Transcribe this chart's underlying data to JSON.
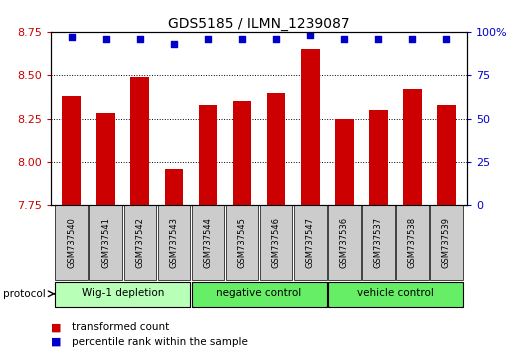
{
  "title": "GDS5185 / ILMN_1239087",
  "samples": [
    "GSM737540",
    "GSM737541",
    "GSM737542",
    "GSM737543",
    "GSM737544",
    "GSM737545",
    "GSM737546",
    "GSM737547",
    "GSM737536",
    "GSM737537",
    "GSM737538",
    "GSM737539"
  ],
  "bar_values": [
    8.38,
    8.28,
    8.49,
    7.96,
    8.33,
    8.35,
    8.4,
    8.65,
    8.25,
    8.3,
    8.42,
    8.33
  ],
  "percentile_values": [
    97,
    96,
    96,
    93,
    96,
    96,
    96,
    98,
    96,
    96,
    96,
    96
  ],
  "bar_color": "#cc0000",
  "percentile_color": "#0000cc",
  "ylim_left": [
    7.75,
    8.75
  ],
  "ylim_right": [
    0,
    100
  ],
  "yticks_left": [
    7.75,
    8.0,
    8.25,
    8.5,
    8.75
  ],
  "yticks_right": [
    0,
    25,
    50,
    75,
    100
  ],
  "groups": [
    {
      "label": "Wig-1 depletion",
      "start": 0,
      "end": 4
    },
    {
      "label": "negative control",
      "start": 4,
      "end": 8
    },
    {
      "label": "vehicle control",
      "start": 8,
      "end": 12
    }
  ],
  "group_colors": [
    "#b8ffb8",
    "#66ee66",
    "#66ee66"
  ],
  "legend_items": [
    {
      "label": "transformed count",
      "color": "#cc0000"
    },
    {
      "label": "percentile rank within the sample",
      "color": "#0000cc"
    }
  ],
  "bar_width": 0.55
}
